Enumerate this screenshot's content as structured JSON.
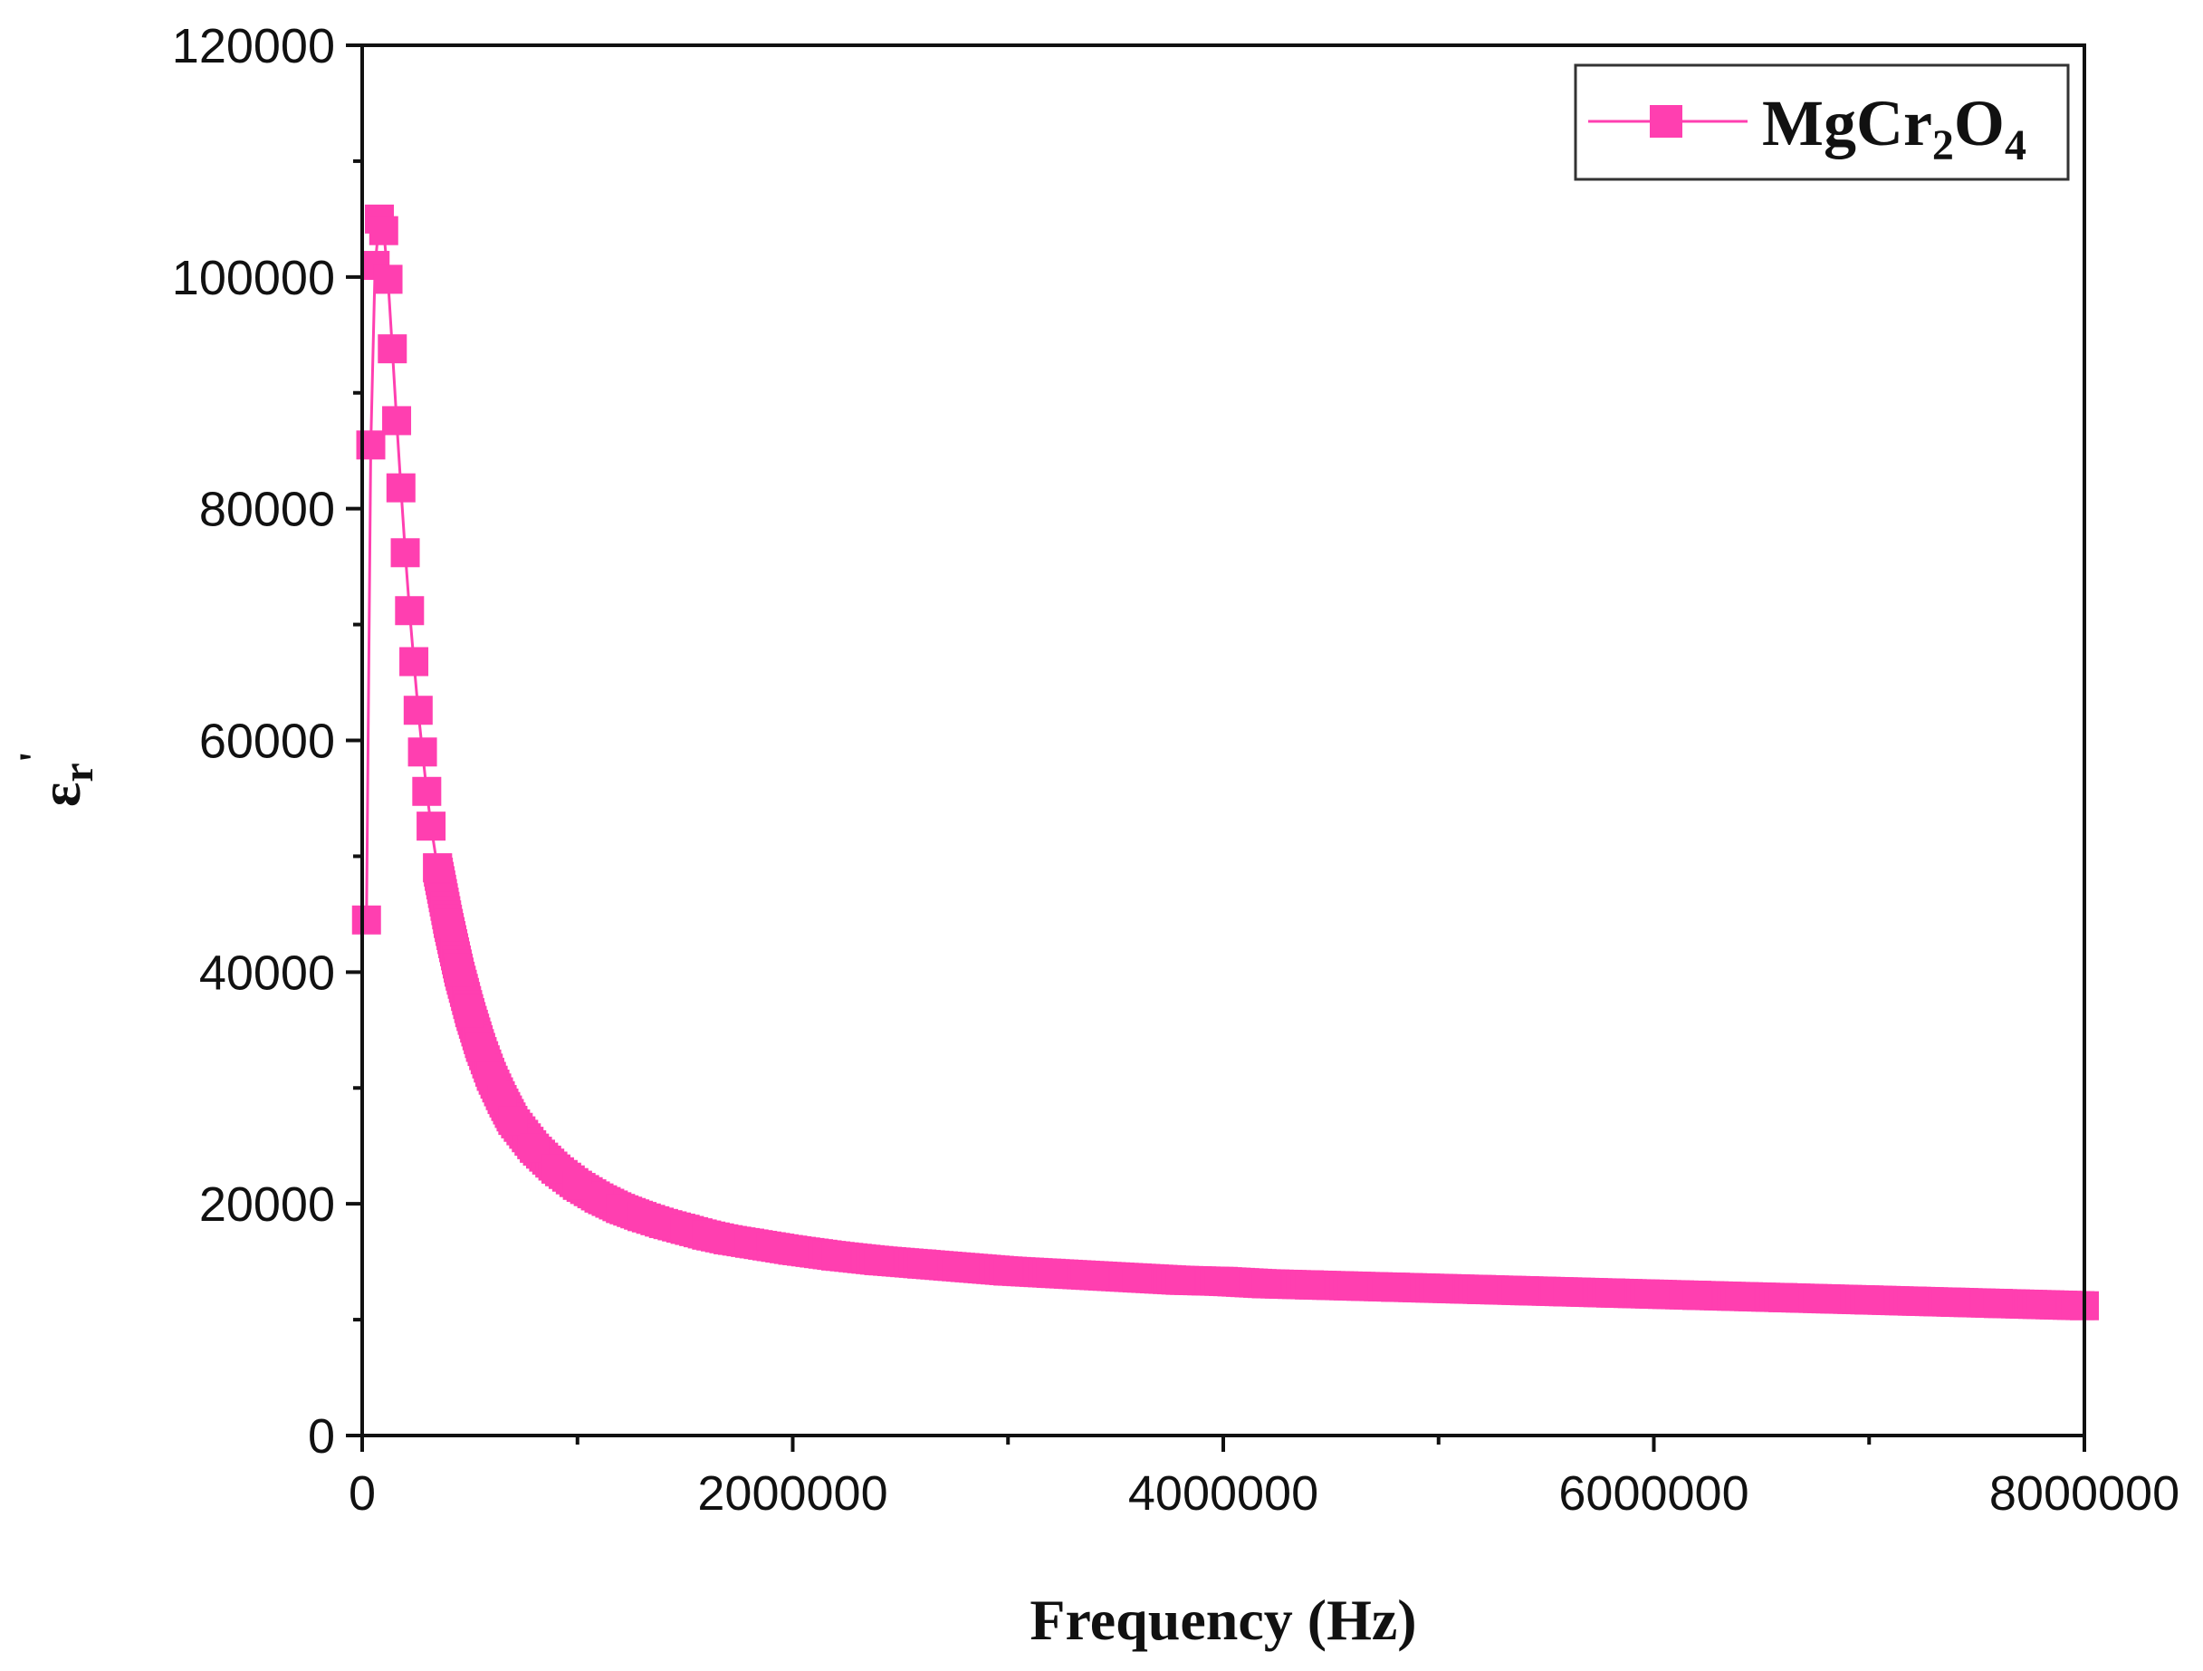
{
  "chart_data": {
    "type": "scatter",
    "xlabel": "Frequency (Hz)",
    "ylabel": {
      "symbol": "ε",
      "subscript": "r",
      "prime": "'"
    },
    "xlim": [
      0,
      8000000
    ],
    "ylim": [
      0,
      120000
    ],
    "x_ticks": [
      0,
      2000000,
      4000000,
      6000000,
      8000000
    ],
    "x_tick_labels": [
      "0",
      "2000000",
      "4000000",
      "6000000",
      "8000000"
    ],
    "y_ticks": [
      0,
      20000,
      40000,
      60000,
      80000,
      100000,
      120000
    ],
    "y_tick_labels": [
      "0",
      "20000",
      "40000",
      "60000",
      "80000",
      "100000",
      "120000"
    ],
    "grid": false,
    "legend_position": "top-right",
    "series": [
      {
        "name": "MgCr2O4",
        "legend_parts": [
          "MgCr",
          "2",
          "O",
          "4"
        ],
        "color": "#ff3fb0",
        "marker": "square",
        "x": [
          20000,
          40000,
          60000,
          80000,
          100000,
          120000,
          140000,
          160000,
          180000,
          200000,
          220000,
          240000,
          260000,
          280000,
          300000,
          320000,
          350000,
          400000,
          450000,
          500000,
          550000,
          600000,
          650000,
          700000,
          800000,
          900000,
          1000000,
          1100000,
          1200000,
          1300000,
          1400000,
          1500000,
          1600000,
          1700000,
          1800000,
          1900000,
          2000000,
          2200000,
          2400000,
          2600000,
          2800000,
          3000000,
          3200000,
          3400000,
          3600000,
          3800000,
          4000000,
          4200000,
          4400000,
          4600000,
          4800000,
          5000000,
          5200000,
          5400000,
          5600000,
          5800000,
          6000000,
          6200000,
          6400000,
          6600000,
          6800000,
          7000000,
          7200000,
          7400000,
          7600000,
          7800000,
          8000000
        ],
        "values": [
          44500,
          85500,
          101000,
          105000,
          104000,
          99800,
          93800,
          87600,
          81800,
          76200,
          71200,
          66800,
          62600,
          59000,
          55600,
          52600,
          49000,
          44200,
          40000,
          36500,
          33500,
          31000,
          29000,
          27200,
          24800,
          23000,
          21600,
          20500,
          19600,
          18900,
          18300,
          17800,
          17300,
          16900,
          16600,
          16300,
          16000,
          15500,
          15100,
          14800,
          14500,
          14200,
          14000,
          13800,
          13600,
          13400,
          13300,
          13100,
          13000,
          12900,
          12800,
          12700,
          12600,
          12500,
          12400,
          12300,
          12200,
          12100,
          12000,
          11900,
          11800,
          11700,
          11600,
          11500,
          11400,
          11300,
          11200
        ]
      }
    ]
  }
}
